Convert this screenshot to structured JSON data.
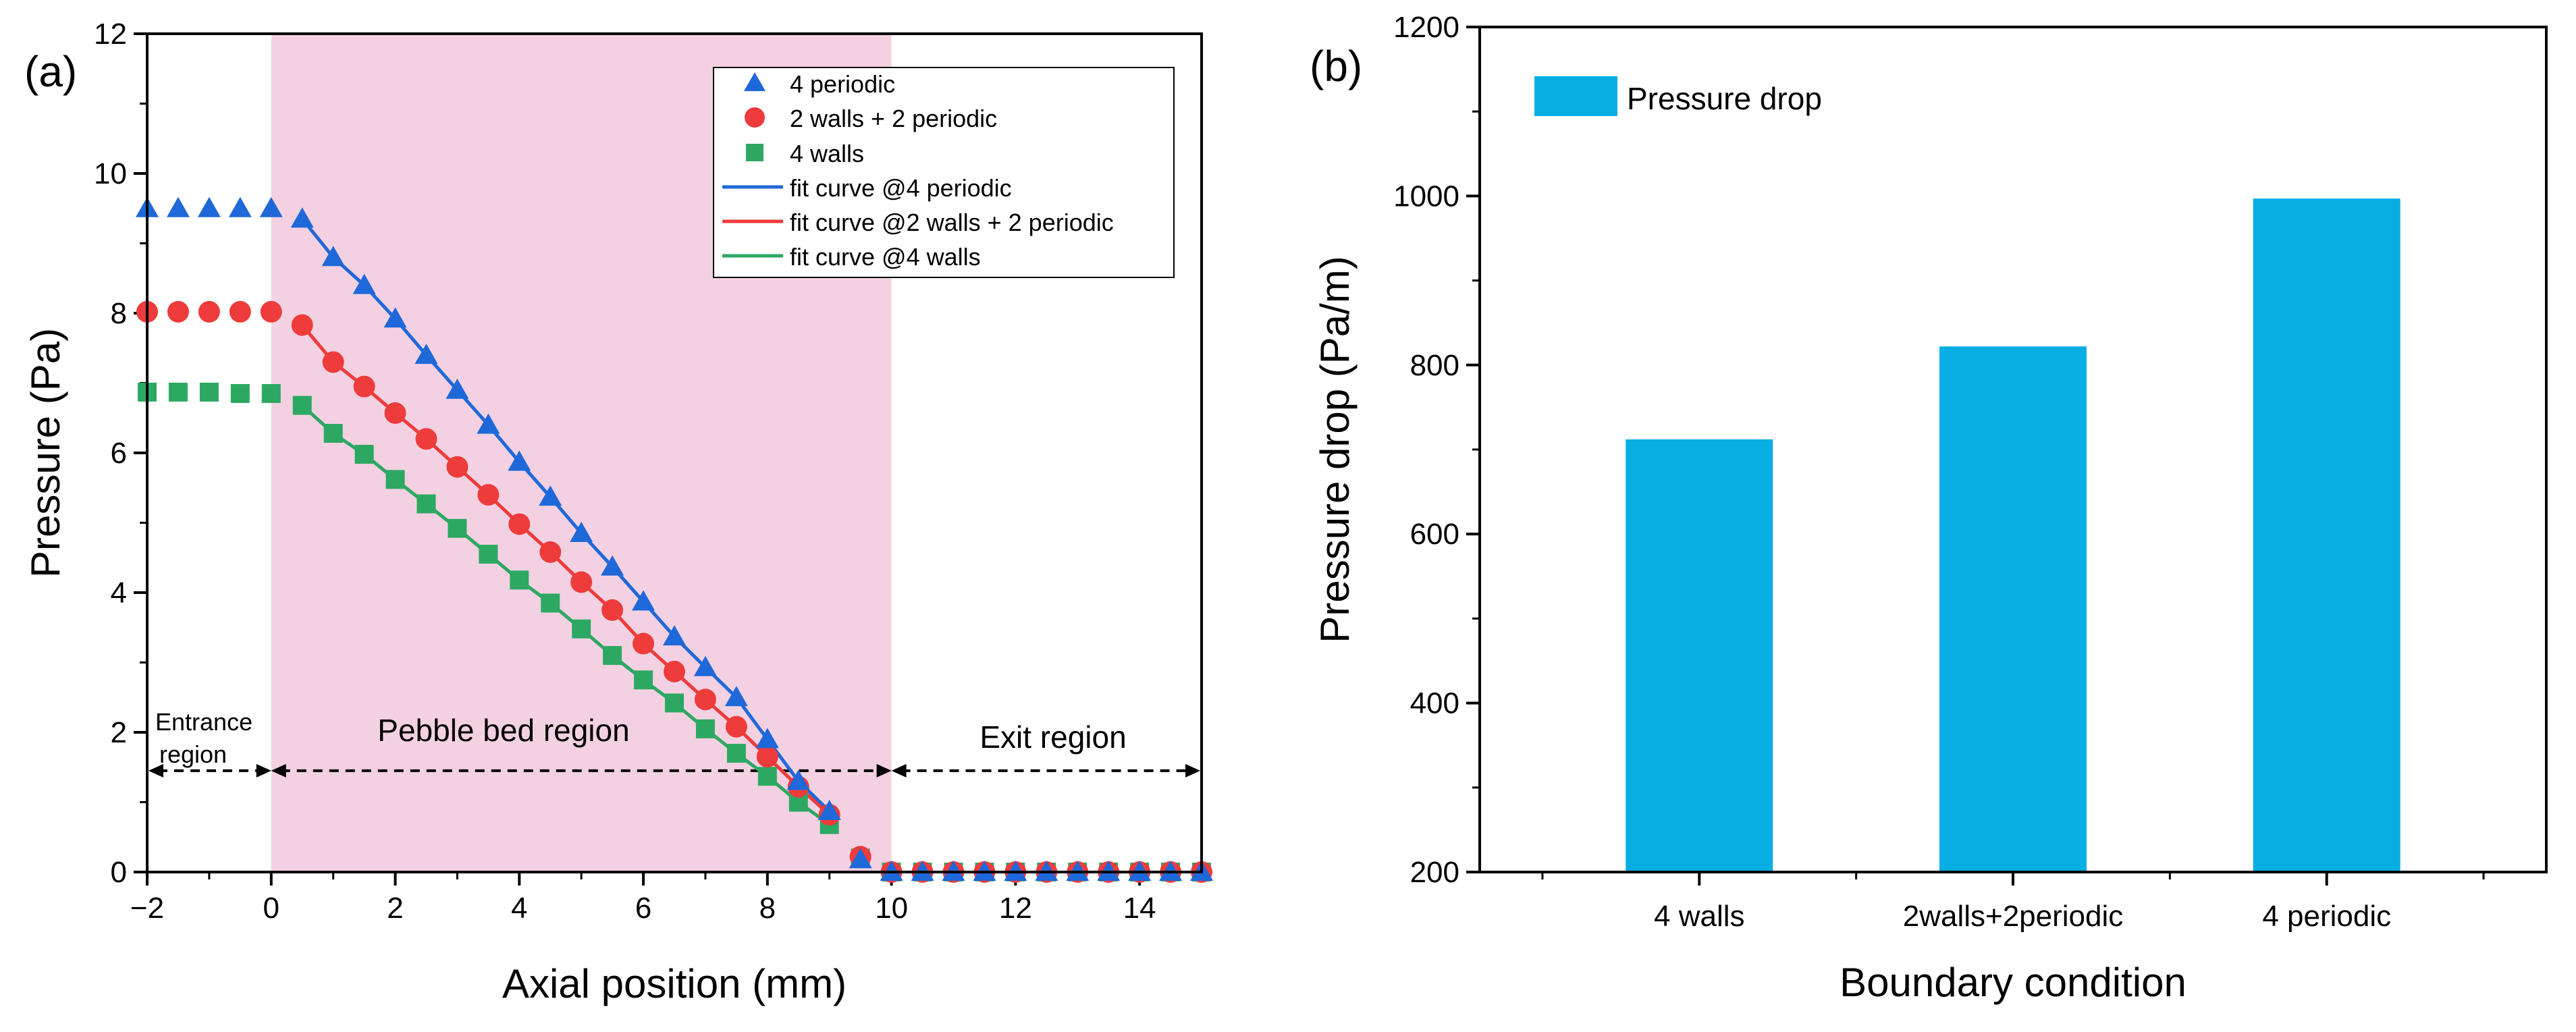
{
  "panel_a": {
    "label": "(a)",
    "annotations": {
      "entrance_line1": "Entrance",
      "entrance_line2": "region",
      "pebble": "Pebble bed region",
      "exit": "Exit region"
    }
  },
  "panel_b": {
    "label": "(b)"
  },
  "colors": {
    "blue": "#1F68D9",
    "red": "#EE3B3B",
    "green": "#2DA862",
    "bar": "#08AEE3",
    "shade": "#F3D1E2"
  },
  "chart_data": [
    {
      "type": "line",
      "title": "",
      "xlabel": "Axial position (mm)",
      "ylabel": "Pressure (Pa)",
      "xlim": [
        -2,
        15
      ],
      "ylim": [
        0,
        12
      ],
      "xticks": [
        "−2",
        "0",
        "2",
        "4",
        "6",
        "8",
        "10",
        "12",
        "14"
      ],
      "yticks": [
        "0",
        "2",
        "4",
        "6",
        "8",
        "10",
        "12"
      ],
      "shaded_region_x": [
        0,
        10
      ],
      "x": [
        -2,
        -1.5,
        -1,
        -0.5,
        0,
        0.5,
        1,
        1.5,
        2,
        2.5,
        3,
        3.5,
        4,
        4.5,
        5,
        5.5,
        6,
        6.5,
        7,
        7.5,
        8,
        8.5,
        9,
        9.5,
        10,
        10.5,
        11,
        11.5,
        12,
        12.5,
        13,
        13.5,
        14,
        14.5,
        15
      ],
      "series": [
        {
          "name": "4 periodic",
          "marker": "triangle",
          "values": [
            9.5,
            9.5,
            9.5,
            9.5,
            9.5,
            9.35,
            8.8,
            8.4,
            7.92,
            7.4,
            6.9,
            6.4,
            5.87,
            5.37,
            4.85,
            4.37,
            3.87,
            3.37,
            2.93,
            2.5,
            1.9,
            1.3,
            0.87,
            0.18,
            0,
            0,
            0,
            0,
            0,
            0,
            0,
            0,
            0,
            0,
            0
          ]
        },
        {
          "name": "2 walls + 2 periodic",
          "marker": "circle",
          "values": [
            8.02,
            8.02,
            8.02,
            8.02,
            8.02,
            7.83,
            7.3,
            6.95,
            6.57,
            6.2,
            5.8,
            5.4,
            4.98,
            4.58,
            4.15,
            3.75,
            3.27,
            2.87,
            2.47,
            2.08,
            1.65,
            1.22,
            0.82,
            0.22,
            0,
            0,
            0,
            0,
            0,
            0,
            0,
            0,
            0,
            0,
            0
          ]
        },
        {
          "name": "4 walls",
          "marker": "square",
          "values": [
            6.87,
            6.87,
            6.87,
            6.85,
            6.85,
            6.68,
            6.28,
            5.98,
            5.62,
            5.27,
            4.92,
            4.55,
            4.18,
            3.85,
            3.48,
            3.1,
            2.75,
            2.42,
            2.05,
            1.7,
            1.37,
            1.0,
            0.68,
            0.2,
            0,
            0,
            0,
            0,
            0,
            0,
            0,
            0,
            0,
            0,
            0
          ]
        }
      ],
      "fit_curves": [
        {
          "name": "fit curve @4 periodic",
          "x_range": [
            0.5,
            9
          ]
        },
        {
          "name": "fit curve @2 walls + 2 periodic",
          "x_range": [
            0.5,
            9
          ]
        },
        {
          "name": "fit curve @4 walls",
          "x_range": [
            0.5,
            9
          ]
        }
      ],
      "legend": "top-right"
    },
    {
      "type": "bar",
      "title": "",
      "xlabel": "Boundary condition",
      "ylabel": "Pressure drop (Pa/m)",
      "ylim": [
        200,
        1200
      ],
      "yticks": [
        "200",
        "400",
        "600",
        "800",
        "1000",
        "1200"
      ],
      "categories": [
        "4 walls",
        "2walls+2periodic",
        "4 periodic"
      ],
      "series": [
        {
          "name": "Pressure drop",
          "values": [
            712,
            822,
            997
          ]
        }
      ],
      "legend": "top-left"
    }
  ]
}
